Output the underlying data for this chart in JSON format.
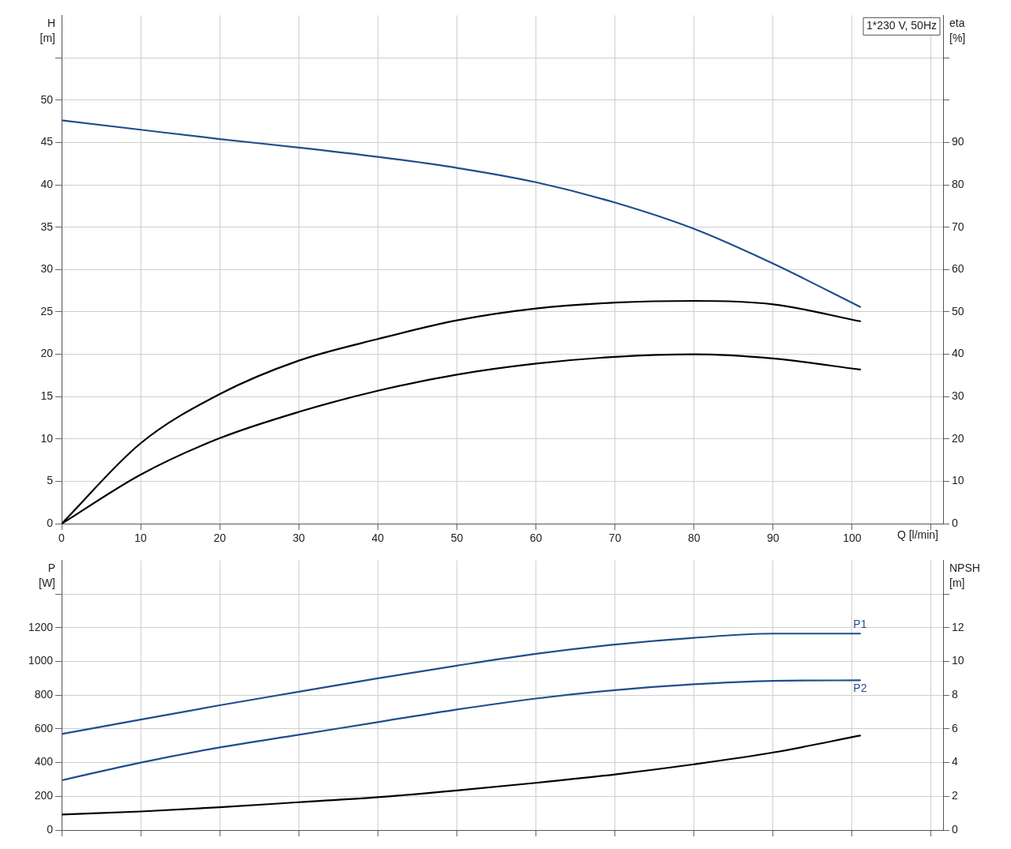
{
  "chart_data": [
    {
      "type": "line",
      "ylabel": "H [m]",
      "y2label": "eta [%]",
      "xlabel": "Q [l/min]",
      "annotations": [
        "1*230 V, 50Hz"
      ],
      "grid": true,
      "marker": "none",
      "xlim": [
        0,
        111.5
      ],
      "xticks": [
        0,
        10,
        20,
        30,
        40,
        50,
        60,
        70,
        80,
        90,
        100,
        {
          "value": 110,
          "label": null
        }
      ],
      "ylim": [
        0,
        60
      ],
      "yticks": [
        0,
        5,
        10,
        15,
        20,
        25,
        30,
        35,
        40,
        45,
        50,
        {
          "value": 55,
          "label": null
        }
      ],
      "y2lim": [
        0,
        120
      ],
      "y2ticks": [
        0,
        10,
        20,
        30,
        40,
        50,
        60,
        70,
        80,
        90,
        {
          "value": 100,
          "label": null
        },
        {
          "value": 110,
          "label": null
        }
      ],
      "series": [
        {
          "color": "#1f4e8c",
          "x": [
            0,
            10,
            20,
            30,
            40,
            50,
            60,
            70,
            80,
            90,
            101
          ],
          "values": [
            47.6,
            46.5,
            45.4,
            44.4,
            43.3,
            42.0,
            40.3,
            37.9,
            34.8,
            30.7,
            25.6
          ]
        },
        {
          "color": "#000000",
          "axis": "y2",
          "x": [
            0,
            10,
            20,
            30,
            40,
            50,
            60,
            70,
            80,
            90,
            101
          ],
          "values": [
            0,
            19,
            30.6,
            38.5,
            43.6,
            48,
            50.8,
            52.2,
            52.6,
            51.8,
            47.8
          ]
        },
        {
          "color": "#000000",
          "axis": "y2",
          "x": [
            0,
            10,
            20,
            30,
            40,
            50,
            60,
            70,
            80,
            90,
            101
          ],
          "values": [
            0,
            11.6,
            20.2,
            26.4,
            31.4,
            35.2,
            37.8,
            39.4,
            40,
            39,
            36.4
          ]
        }
      ]
    },
    {
      "type": "line",
      "ylabel": "P [W]",
      "y2label": "NPSH [m]",
      "grid": true,
      "marker": "none",
      "tick_labels": "y",
      "xlim": [
        0,
        111.5
      ],
      "xticks": [
        0,
        10,
        20,
        30,
        40,
        50,
        60,
        70,
        80,
        90,
        100,
        110
      ],
      "ylim": [
        0,
        1600
      ],
      "yticks": [
        0,
        200,
        400,
        600,
        800,
        1000,
        1200,
        {
          "value": 1400,
          "label": null
        }
      ],
      "y2lim": [
        0,
        16
      ],
      "y2ticks": [
        0,
        2,
        4,
        6,
        8,
        10,
        12,
        {
          "value": 14,
          "label": null
        }
      ],
      "series": [
        {
          "name": "P1",
          "color": "#1f4e8c",
          "x": [
            0,
            10,
            20,
            30,
            40,
            50,
            60,
            70,
            80,
            90,
            101
          ],
          "values": [
            570,
            655,
            740,
            820,
            900,
            975,
            1045,
            1100,
            1140,
            1165,
            1165
          ]
        },
        {
          "name": "P2",
          "color": "#1f4e8c",
          "x": [
            0,
            10,
            20,
            30,
            40,
            50,
            60,
            70,
            80,
            90,
            101
          ],
          "values": [
            295,
            400,
            490,
            565,
            640,
            715,
            780,
            830,
            865,
            885,
            888
          ]
        },
        {
          "color": "#000000",
          "axis": "y2",
          "x": [
            0,
            10,
            20,
            30,
            40,
            50,
            60,
            70,
            80,
            90,
            101
          ],
          "values": [
            0.92,
            1.1,
            1.35,
            1.65,
            1.95,
            2.35,
            2.8,
            3.3,
            3.9,
            4.6,
            5.6
          ]
        }
      ]
    }
  ]
}
